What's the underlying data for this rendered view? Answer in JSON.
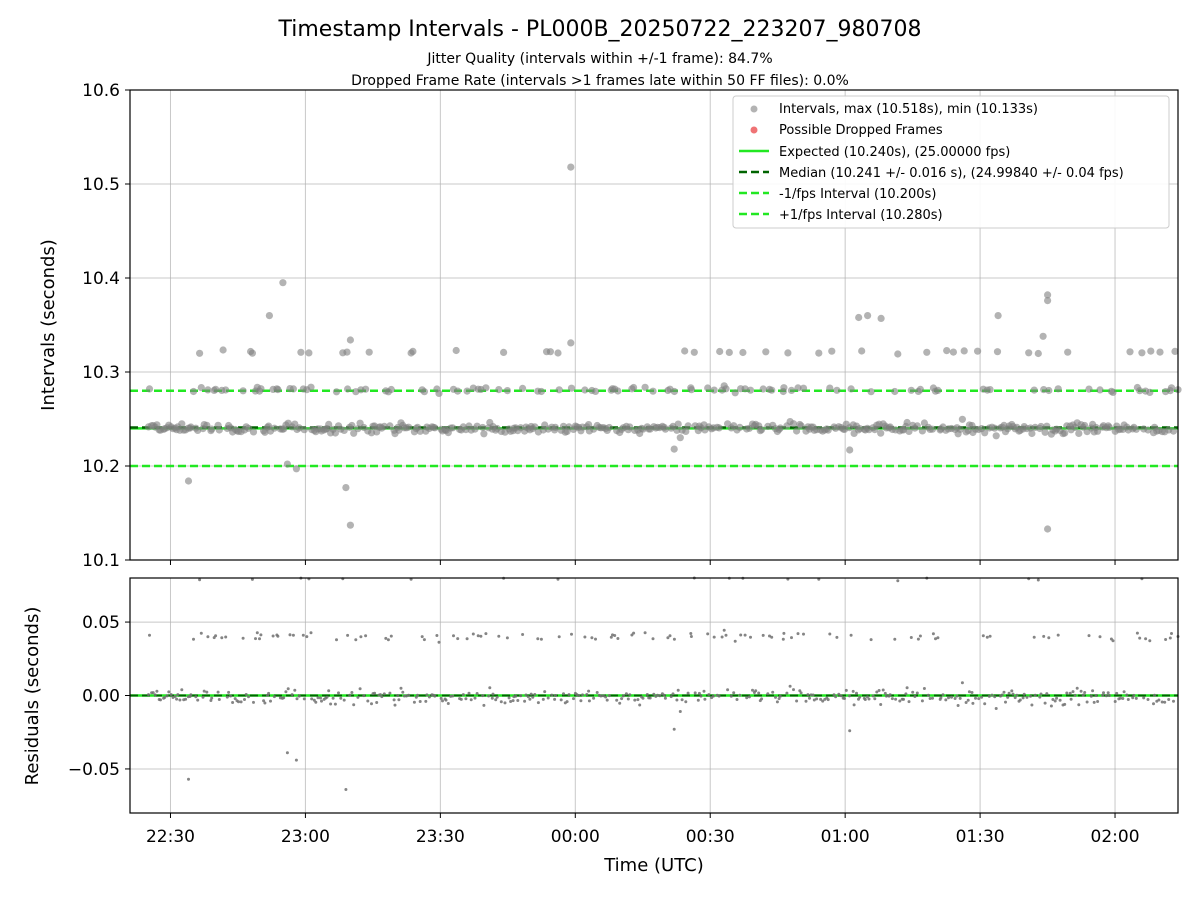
{
  "header": {
    "title": "Timestamp Intervals - PL000B_20250722_223207_980708",
    "subtitle_1": "Jitter Quality (intervals within +/-1 frame): 84.7%",
    "subtitle_2": "Dropped Frame Rate (intervals >1 frames late within 50 FF files): 0.0%"
  },
  "colors": {
    "points": "#808080",
    "dropped": "#e8383b",
    "expected": "#22e822",
    "median": "#006400",
    "interval_lines": "#22e822",
    "residual_points": "#707070"
  },
  "chart_data": [
    {
      "type": "scatter",
      "panel": "intervals",
      "title": "Timestamp Intervals - PL000B_20250722_223207_980708",
      "ylabel": "Intervals (seconds)",
      "ylim": [
        10.1,
        10.6
      ],
      "yticks": [
        "10.1",
        "10.2",
        "10.3",
        "10.4",
        "10.5",
        "10.6"
      ],
      "xlim_minutes_from_2230": [
        -9,
        224
      ],
      "grid": true,
      "legend_position": "top-right",
      "reference_lines": {
        "expected": 10.24,
        "median": 10.241,
        "minus_1_fps": 10.2,
        "plus_1_fps": 10.28
      },
      "legend": [
        "Intervals, max (10.518s), min (10.133s)",
        "Possible Dropped Frames",
        "Expected (10.240s), (25.00000 fps)",
        "Median (10.241 +/- 0.016 s), (24.99840 +/- 0.04 fps)",
        "-1/fps Interval (10.200s)",
        "+1/fps Interval (10.280s)"
      ],
      "notable_points": [
        {
          "time": "23:59",
          "value": 10.518
        },
        {
          "time": "22:55",
          "value": 10.395
        },
        {
          "time": "22:52",
          "value": 10.36
        },
        {
          "time": "23:10",
          "value": 10.334
        },
        {
          "time": "23:10",
          "value": 10.137
        },
        {
          "time": "23:09",
          "value": 10.177
        },
        {
          "time": "22:34",
          "value": 10.184
        },
        {
          "time": "22:56",
          "value": 10.202
        },
        {
          "time": "22:58",
          "value": 10.197
        },
        {
          "time": "23:59",
          "value": 10.331
        },
        {
          "time": "01:34",
          "value": 10.36
        },
        {
          "time": "01:45",
          "value": 10.382
        },
        {
          "time": "01:45",
          "value": 10.376
        },
        {
          "time": "01:44",
          "value": 10.338
        },
        {
          "time": "01:45",
          "value": 10.133
        },
        {
          "time": "01:03",
          "value": 10.358
        },
        {
          "time": "01:05",
          "value": 10.36
        },
        {
          "time": "01:08",
          "value": 10.357
        },
        {
          "time": "01:01",
          "value": 10.217
        },
        {
          "time": "00:22",
          "value": 10.218
        }
      ],
      "seeded_bulk": {
        "description": "Bulk of intervals clustered around 10.240 s with a secondary band near 10.280 s and sparse scatter near 10.32 s",
        "main_band": [
          10.22,
          10.255
        ],
        "secondary_band": [
          10.27,
          10.29
        ],
        "upper_scatter": [
          10.31,
          10.33
        ]
      }
    },
    {
      "type": "scatter",
      "panel": "residuals",
      "xlabel": "Time (UTC)",
      "ylabel": "Residuals (seconds)",
      "ylim": [
        -0.08,
        0.08
      ],
      "yticks": [
        "−0.05",
        "0.00",
        "0.05"
      ],
      "xticks": [
        "22:30",
        "23:00",
        "23:30",
        "00:00",
        "00:30",
        "01:00",
        "01:30",
        "02:00"
      ],
      "xlim_minutes_from_2230": [
        -9,
        224
      ],
      "grid": true,
      "reference_lines": {
        "median": 0.0,
        "expected": 0.0
      }
    }
  ]
}
